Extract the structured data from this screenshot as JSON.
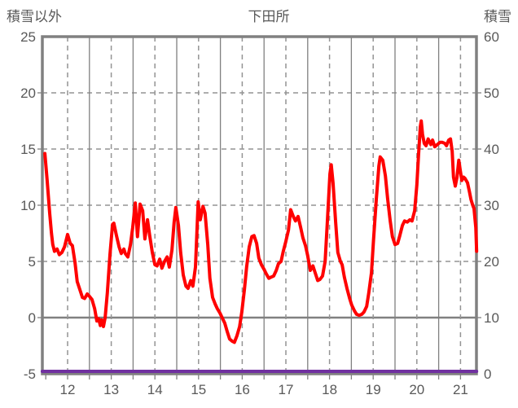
{
  "header": {
    "left_axis_title": "積雪以外",
    "chart_title": "下田所",
    "right_axis_title": "積雪"
  },
  "chart_data": {
    "type": "line",
    "title": "下田所",
    "legend": "none",
    "grid": {
      "horizontal": "dashed",
      "vertical_year_boundaries": "solid",
      "vertical_year_centers": "dashed",
      "zero_line": "solid"
    },
    "left_axis": {
      "title": "積雪以外",
      "min": -5,
      "max": 25,
      "step": 5,
      "tick_labels": [
        "25",
        "20",
        "15",
        "10",
        "5",
        "0",
        "-5"
      ]
    },
    "right_axis": {
      "title": "積雪",
      "min": 0,
      "max": 60,
      "step": 10,
      "tick_labels": [
        "60",
        "50",
        "40",
        "30",
        "20",
        "10",
        "0"
      ]
    },
    "x_axis": {
      "tick_values": [
        12,
        13,
        14,
        15,
        16,
        17,
        18,
        19,
        20,
        21
      ],
      "tick_labels": [
        "12",
        "13",
        "14",
        "15",
        "16",
        "17",
        "18",
        "19",
        "20",
        "21"
      ],
      "data_range": [
        11.48,
        21.37
      ]
    },
    "series": [
      {
        "name": "積雪以外",
        "axis": "left",
        "color": "#ff0000",
        "width": 4,
        "points": [
          [
            11.48,
            14.6
          ],
          [
            11.53,
            12.3
          ],
          [
            11.59,
            9.3
          ],
          [
            11.63,
            7.5
          ],
          [
            11.66,
            6.5
          ],
          [
            11.7,
            5.9
          ],
          [
            11.76,
            6.1
          ],
          [
            11.81,
            5.6
          ],
          [
            11.87,
            5.8
          ],
          [
            11.93,
            6.3
          ],
          [
            12.0,
            7.4
          ],
          [
            12.06,
            6.6
          ],
          [
            12.11,
            6.4
          ],
          [
            12.17,
            4.9
          ],
          [
            12.22,
            3.2
          ],
          [
            12.28,
            2.5
          ],
          [
            12.34,
            1.8
          ],
          [
            12.39,
            1.7
          ],
          [
            12.45,
            2.1
          ],
          [
            12.5,
            1.9
          ],
          [
            12.56,
            1.6
          ],
          [
            12.62,
            0.8
          ],
          [
            12.67,
            -0.3
          ],
          [
            12.71,
            -0.1
          ],
          [
            12.75,
            -0.7
          ],
          [
            12.78,
            -0.2
          ],
          [
            12.82,
            -0.8
          ],
          [
            12.86,
            0.0
          ],
          [
            12.91,
            2.2
          ],
          [
            12.97,
            5.6
          ],
          [
            13.03,
            8.3
          ],
          [
            13.06,
            8.4
          ],
          [
            13.12,
            7.3
          ],
          [
            13.18,
            6.3
          ],
          [
            13.23,
            5.7
          ],
          [
            13.29,
            6.1
          ],
          [
            13.32,
            5.7
          ],
          [
            13.38,
            5.4
          ],
          [
            13.44,
            6.5
          ],
          [
            13.49,
            8.0
          ],
          [
            13.55,
            10.2
          ],
          [
            13.6,
            7.2
          ],
          [
            13.66,
            10.1
          ],
          [
            13.72,
            9.5
          ],
          [
            13.77,
            7.0
          ],
          [
            13.83,
            8.7
          ],
          [
            13.88,
            7.3
          ],
          [
            13.94,
            5.8
          ],
          [
            14.0,
            4.7
          ],
          [
            14.05,
            4.6
          ],
          [
            14.11,
            5.2
          ],
          [
            14.16,
            4.4
          ],
          [
            14.22,
            5.0
          ],
          [
            14.28,
            5.4
          ],
          [
            14.33,
            4.5
          ],
          [
            14.39,
            6.0
          ],
          [
            14.44,
            8.5
          ],
          [
            14.48,
            9.8
          ],
          [
            14.54,
            8.2
          ],
          [
            14.59,
            5.8
          ],
          [
            14.65,
            3.8
          ],
          [
            14.71,
            2.8
          ],
          [
            14.76,
            2.6
          ],
          [
            14.82,
            3.3
          ],
          [
            14.87,
            2.8
          ],
          [
            14.93,
            4.5
          ],
          [
            14.99,
            10.3
          ],
          [
            15.04,
            8.7
          ],
          [
            15.1,
            9.9
          ],
          [
            15.15,
            9.3
          ],
          [
            15.21,
            6.5
          ],
          [
            15.26,
            3.5
          ],
          [
            15.32,
            1.8
          ],
          [
            15.38,
            1.2
          ],
          [
            15.43,
            0.8
          ],
          [
            15.49,
            0.4
          ],
          [
            15.54,
            0.0
          ],
          [
            15.6,
            -0.5
          ],
          [
            15.66,
            -1.3
          ],
          [
            15.71,
            -1.9
          ],
          [
            15.77,
            -2.1
          ],
          [
            15.82,
            -2.2
          ],
          [
            15.88,
            -1.6
          ],
          [
            15.94,
            -0.8
          ],
          [
            15.99,
            0.5
          ],
          [
            16.05,
            2.5
          ],
          [
            16.1,
            4.5
          ],
          [
            16.16,
            6.3
          ],
          [
            16.22,
            7.2
          ],
          [
            16.27,
            7.3
          ],
          [
            16.33,
            6.6
          ],
          [
            16.38,
            5.3
          ],
          [
            16.44,
            4.7
          ],
          [
            16.5,
            4.3
          ],
          [
            16.55,
            3.9
          ],
          [
            16.61,
            3.5
          ],
          [
            16.66,
            3.6
          ],
          [
            16.72,
            3.7
          ],
          [
            16.78,
            4.2
          ],
          [
            16.83,
            4.8
          ],
          [
            16.89,
            5.0
          ],
          [
            16.94,
            5.9
          ],
          [
            17.0,
            6.8
          ],
          [
            17.06,
            7.8
          ],
          [
            17.11,
            9.6
          ],
          [
            17.17,
            9.0
          ],
          [
            17.22,
            8.6
          ],
          [
            17.28,
            9.0
          ],
          [
            17.34,
            8.0
          ],
          [
            17.39,
            7.1
          ],
          [
            17.45,
            6.4
          ],
          [
            17.5,
            5.5
          ],
          [
            17.56,
            4.2
          ],
          [
            17.62,
            4.6
          ],
          [
            17.67,
            4.0
          ],
          [
            17.73,
            3.3
          ],
          [
            17.78,
            3.4
          ],
          [
            17.84,
            3.7
          ],
          [
            17.9,
            5.0
          ],
          [
            17.95,
            8.5
          ],
          [
            18.01,
            12.8
          ],
          [
            18.04,
            13.6
          ],
          [
            18.08,
            12.0
          ],
          [
            18.14,
            8.5
          ],
          [
            18.19,
            5.8
          ],
          [
            18.25,
            5.0
          ],
          [
            18.29,
            4.7
          ],
          [
            18.34,
            3.6
          ],
          [
            18.4,
            2.6
          ],
          [
            18.46,
            1.7
          ],
          [
            18.51,
            1.1
          ],
          [
            18.57,
            0.6
          ],
          [
            18.62,
            0.3
          ],
          [
            18.68,
            0.2
          ],
          [
            18.74,
            0.3
          ],
          [
            18.79,
            0.5
          ],
          [
            18.85,
            1.0
          ],
          [
            18.9,
            2.2
          ],
          [
            18.96,
            4.0
          ],
          [
            19.01,
            7.0
          ],
          [
            19.07,
            10.5
          ],
          [
            19.13,
            13.5
          ],
          [
            19.16,
            14.3
          ],
          [
            19.22,
            14.0
          ],
          [
            19.28,
            12.6
          ],
          [
            19.33,
            10.6
          ],
          [
            19.39,
            8.6
          ],
          [
            19.44,
            7.2
          ],
          [
            19.5,
            6.5
          ],
          [
            19.56,
            6.6
          ],
          [
            19.61,
            7.3
          ],
          [
            19.67,
            8.2
          ],
          [
            19.72,
            8.6
          ],
          [
            19.78,
            8.5
          ],
          [
            19.84,
            8.7
          ],
          [
            19.89,
            8.6
          ],
          [
            19.95,
            9.5
          ],
          [
            20.0,
            11.8
          ],
          [
            20.04,
            14.5
          ],
          [
            20.08,
            17.0
          ],
          [
            20.1,
            17.5
          ],
          [
            20.13,
            16.3
          ],
          [
            20.17,
            15.5
          ],
          [
            20.21,
            15.3
          ],
          [
            20.26,
            15.9
          ],
          [
            20.32,
            15.4
          ],
          [
            20.36,
            15.8
          ],
          [
            20.41,
            15.2
          ],
          [
            20.47,
            15.4
          ],
          [
            20.53,
            15.6
          ],
          [
            20.58,
            15.6
          ],
          [
            20.64,
            15.5
          ],
          [
            20.68,
            15.3
          ],
          [
            20.73,
            15.8
          ],
          [
            20.77,
            15.9
          ],
          [
            20.81,
            14.8
          ],
          [
            20.84,
            12.5
          ],
          [
            20.88,
            11.7
          ],
          [
            20.92,
            12.5
          ],
          [
            20.96,
            14.0
          ],
          [
            20.99,
            13.2
          ],
          [
            21.03,
            12.2
          ],
          [
            21.07,
            12.5
          ],
          [
            21.1,
            12.4
          ],
          [
            21.16,
            12.0
          ],
          [
            21.2,
            11.3
          ],
          [
            21.24,
            10.5
          ],
          [
            21.28,
            10.0
          ],
          [
            21.31,
            9.7
          ],
          [
            21.35,
            8.0
          ],
          [
            21.37,
            5.9
          ]
        ]
      },
      {
        "name": "積雪",
        "axis": "right",
        "color": "#7030a0",
        "width": 4,
        "points": [
          [
            11.42,
            0
          ],
          [
            21.37,
            0
          ]
        ]
      }
    ],
    "colors": {
      "frame": "#808080",
      "gridline": "#949494",
      "text": "#595959"
    }
  }
}
